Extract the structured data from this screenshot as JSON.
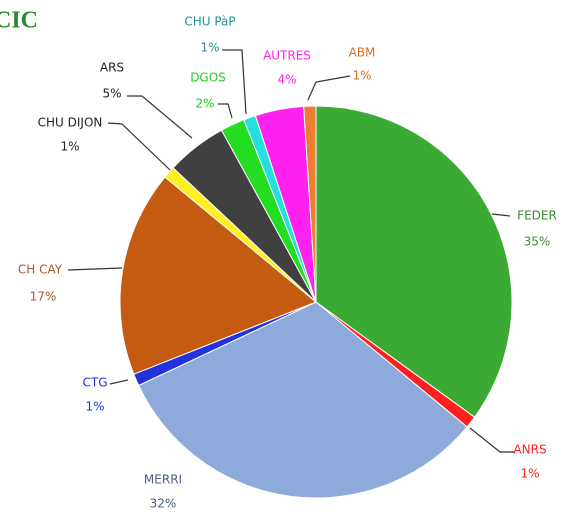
{
  "chart_data": {
    "type": "pie",
    "title": "CIC",
    "categories": [
      "FEDER",
      "ANRS",
      "MERRI",
      "CTG",
      "CH CAY",
      "CHU DIJON",
      "ARS",
      "DGOS",
      "CHU PàP",
      "AUTRES",
      "ABM"
    ],
    "values": [
      35,
      1,
      32,
      1,
      17,
      1,
      5,
      2,
      1,
      4,
      1
    ],
    "value_labels": [
      "35%",
      "1%",
      "32%",
      "1%",
      "17%",
      "1%",
      "5%",
      "2%",
      "1%",
      "4%",
      "1%"
    ],
    "colors": [
      "#3aaa35",
      "#ff2020",
      "#8eaadb",
      "#2233dd",
      "#c55a11",
      "#ffee22",
      "#404040",
      "#22dd22",
      "#22e0e0",
      "#ff22ee",
      "#ed7d31"
    ],
    "label_colors": [
      "#3a8a35",
      "#ff2020",
      "#4a5a80",
      "#2233dd",
      "#a85a2a",
      "#222222",
      "#222222",
      "#22cc22",
      "#2090a0",
      "#ff22ee",
      "#d0702a"
    ]
  }
}
